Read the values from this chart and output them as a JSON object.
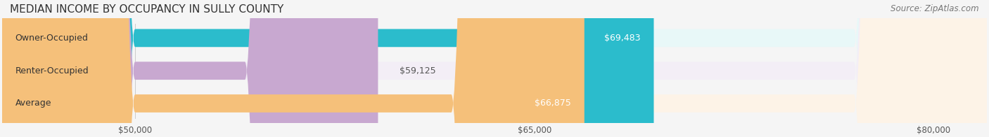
{
  "title": "MEDIAN INCOME BY OCCUPANCY IN SULLY COUNTY",
  "source": "Source: ZipAtlas.com",
  "categories": [
    "Owner-Occupied",
    "Renter-Occupied",
    "Average"
  ],
  "values": [
    69483,
    59125,
    66875
  ],
  "bar_colors": [
    "#2bbccc",
    "#c8a8d0",
    "#f5c07a"
  ],
  "bar_bg_colors": [
    "#e8f8f8",
    "#f3eef6",
    "#fdf3e7"
  ],
  "label_colors": [
    "#ffffff",
    "#555555",
    "#555555"
  ],
  "value_labels": [
    "$69,483",
    "$59,125",
    "$66,875"
  ],
  "xlim": [
    45000,
    82000
  ],
  "xticks": [
    50000,
    65000,
    80000
  ],
  "xtick_labels": [
    "$50,000",
    "$65,000",
    "$80,000"
  ],
  "title_fontsize": 11,
  "source_fontsize": 8.5,
  "label_fontsize": 9,
  "value_fontsize": 9,
  "tick_fontsize": 8.5,
  "bar_height": 0.55,
  "background_color": "#f5f5f5"
}
